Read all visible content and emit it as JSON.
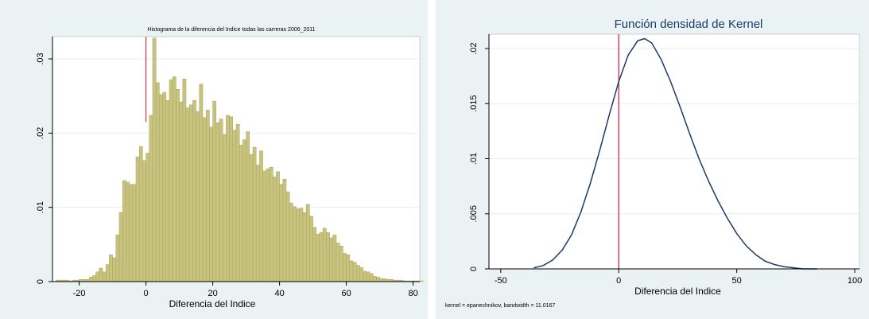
{
  "chart_data": [
    {
      "type": "bar",
      "title": "Histograma de la diferencia del Indice todas las carreras 2006_2011",
      "xlabel": "Diferencia del Indice",
      "ylabel": "",
      "xlim": [
        -28,
        82
      ],
      "ylim": [
        0,
        0.033
      ],
      "x_ticks": [
        -20,
        0,
        20,
        40,
        60,
        80
      ],
      "x_tick_labels": [
        "-20",
        "0",
        "20",
        "40",
        "60",
        "80"
      ],
      "y_ticks": [
        0,
        0.01,
        0.02,
        0.03
      ],
      "y_tick_labels": [
        "0",
        ".01",
        ".02",
        ".03"
      ],
      "bin_start": -27,
      "bin_width": 1,
      "values": [
        0.0002,
        0.0002,
        0.0002,
        0.0002,
        0.0001,
        0.0002,
        0.0002,
        0.0003,
        0.0003,
        0.0003,
        0.0006,
        0.0008,
        0.0013,
        0.0018,
        0.0013,
        0.0023,
        0.0036,
        0.0032,
        0.0063,
        0.0093,
        0.0136,
        0.0134,
        0.0131,
        0.0131,
        0.0168,
        0.0182,
        0.0163,
        0.0173,
        0.0224,
        0.0328,
        0.0268,
        0.0252,
        0.0255,
        0.0244,
        0.0272,
        0.0276,
        0.0259,
        0.0242,
        0.0273,
        0.0234,
        0.0238,
        0.0244,
        0.0229,
        0.0266,
        0.0221,
        0.0231,
        0.0208,
        0.0243,
        0.0214,
        0.0219,
        0.0198,
        0.0224,
        0.0222,
        0.0204,
        0.0212,
        0.0184,
        0.0191,
        0.0202,
        0.0171,
        0.0181,
        0.0157,
        0.0176,
        0.0149,
        0.0152,
        0.0154,
        0.0141,
        0.0148,
        0.0131,
        0.0138,
        0.0121,
        0.0106,
        0.0101,
        0.0098,
        0.0099,
        0.0093,
        0.0104,
        0.0088,
        0.0073,
        0.0064,
        0.0066,
        0.0072,
        0.0066,
        0.0059,
        0.0063,
        0.0052,
        0.0048,
        0.0038,
        0.0036,
        0.0028,
        0.0026,
        0.0022,
        0.0019,
        0.0014,
        0.0013,
        0.0011,
        0.0007,
        0.0006,
        0.0004,
        0.0004,
        0.0003,
        0.0003,
        0.0002,
        0.0002,
        0.0002,
        0.0001,
        0.0001,
        0.0001,
        0.0001,
        0.0001,
        0.0001
      ],
      "reference_line_x": 0,
      "reference_line_color": "#d6304a",
      "bar_color": "#c8c37f",
      "bar_edge_color": "#a8a35a",
      "background_color": "#eaf2f3",
      "plot_background_color": "#ffffff",
      "grid": true
    },
    {
      "type": "line",
      "title": "Función densidad de Kernel",
      "xlabel": "Diferencia del Indice",
      "ylabel": "",
      "note": "kernel = epanechnikov, bandwidth = 11.0167",
      "xlim": [
        -55,
        102
      ],
      "ylim": [
        0,
        0.0213
      ],
      "x_ticks": [
        -50,
        0,
        50,
        100
      ],
      "x_tick_labels": [
        "-50",
        "0",
        "50",
        "100"
      ],
      "y_ticks": [
        0,
        0.005,
        0.01,
        0.015,
        0.02
      ],
      "y_tick_labels": [
        "0",
        ".005",
        ".01",
        ".015",
        ".02"
      ],
      "series": [
        {
          "x": [
            -36,
            -32,
            -28,
            -24,
            -20,
            -16,
            -12,
            -8,
            -4,
            0,
            4,
            8,
            11,
            14,
            18,
            22,
            26,
            30,
            34,
            38,
            42,
            46,
            50,
            54,
            58,
            62,
            66,
            70,
            74,
            78,
            84
          ],
          "y": [
            0.0001,
            0.0003,
            0.0008,
            0.0017,
            0.0031,
            0.0052,
            0.0078,
            0.0108,
            0.014,
            0.017,
            0.0194,
            0.0207,
            0.0209,
            0.0205,
            0.019,
            0.017,
            0.0147,
            0.0123,
            0.01,
            0.008,
            0.0062,
            0.0046,
            0.0032,
            0.0021,
            0.0013,
            0.0007,
            0.0004,
            0.0002,
            0.0001,
            0.0,
            0.0
          ],
          "color": "#1a3a6a"
        }
      ],
      "reference_line_x": 0,
      "reference_line_color": "#e0406a",
      "background_color": "#eaf2f3",
      "plot_background_color": "#ffffff",
      "grid": true
    }
  ]
}
